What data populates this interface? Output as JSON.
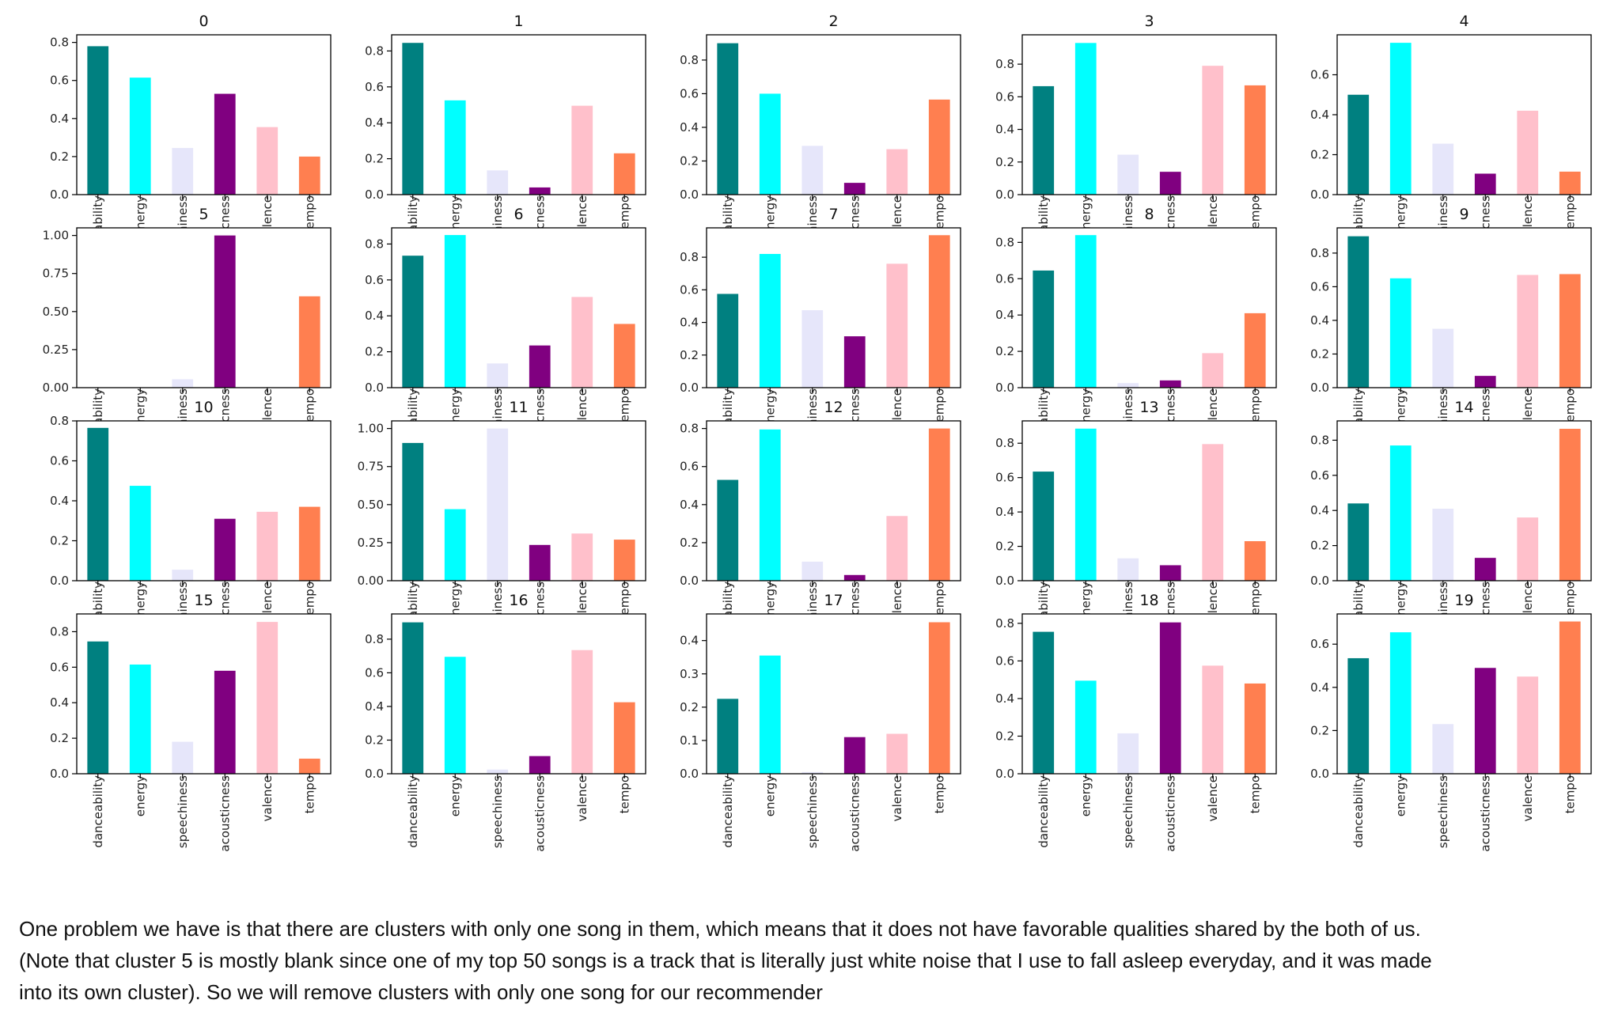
{
  "colors": [
    "#008080",
    "#00ffff",
    "#e6e6fa",
    "#800080",
    "#ffc0cb",
    "#ff7f50"
  ],
  "chart_data": [
    {
      "type": "bar",
      "title": "0",
      "categories": [
        "danceability",
        "energy",
        "speechiness",
        "acousticness",
        "valence",
        "tempo"
      ],
      "values": [
        0.78,
        0.615,
        0.245,
        0.53,
        0.355,
        0.2
      ],
      "ylim": [
        0,
        0.84
      ],
      "yticks": [
        "0.0",
        "0.2",
        "0.4",
        "0.6",
        "0.8"
      ]
    },
    {
      "type": "bar",
      "title": "1",
      "categories": [
        "danceability",
        "energy",
        "speechiness",
        "acousticness",
        "valence",
        "tempo"
      ],
      "values": [
        0.845,
        0.525,
        0.135,
        0.04,
        0.495,
        0.23
      ],
      "ylim": [
        0,
        0.89
      ],
      "yticks": [
        "0.0",
        "0.2",
        "0.4",
        "0.6",
        "0.8"
      ]
    },
    {
      "type": "bar",
      "title": "2",
      "categories": [
        "danceability",
        "energy",
        "speechiness",
        "acousticness",
        "valence",
        "tempo"
      ],
      "values": [
        0.9,
        0.6,
        0.29,
        0.07,
        0.27,
        0.565
      ],
      "ylim": [
        0,
        0.95
      ],
      "yticks": [
        "0.0",
        "0.2",
        "0.4",
        "0.6",
        "0.8"
      ]
    },
    {
      "type": "bar",
      "title": "3",
      "categories": [
        "danceability",
        "energy",
        "speechiness",
        "acousticness",
        "valence",
        "tempo"
      ],
      "values": [
        0.665,
        0.93,
        0.245,
        0.14,
        0.79,
        0.67
      ],
      "ylim": [
        0,
        0.98
      ],
      "yticks": [
        "0.0",
        "0.2",
        "0.4",
        "0.6",
        "0.8"
      ]
    },
    {
      "type": "bar",
      "title": "4",
      "categories": [
        "danceability",
        "energy",
        "speechiness",
        "acousticness",
        "valence",
        "tempo"
      ],
      "values": [
        0.5,
        0.76,
        0.255,
        0.105,
        0.42,
        0.115
      ],
      "ylim": [
        0,
        0.8
      ],
      "yticks": [
        "0.0",
        "0.2",
        "0.4",
        "0.6"
      ]
    },
    {
      "type": "bar",
      "title": "5",
      "categories": [
        "danceability",
        "energy",
        "speechiness",
        "acousticness",
        "valence",
        "tempo"
      ],
      "values": [
        0.0,
        0.0,
        0.055,
        1.0,
        0.0,
        0.6
      ],
      "ylim": [
        0,
        1.05
      ],
      "yticks": [
        "0.00",
        "0.25",
        "0.50",
        "0.75",
        "1.00"
      ]
    },
    {
      "type": "bar",
      "title": "6",
      "categories": [
        "danceability",
        "energy",
        "speechiness",
        "acousticness",
        "valence",
        "tempo"
      ],
      "values": [
        0.735,
        0.85,
        0.135,
        0.235,
        0.505,
        0.355
      ],
      "ylim": [
        0,
        0.89
      ],
      "yticks": [
        "0.0",
        "0.2",
        "0.4",
        "0.6",
        "0.8"
      ]
    },
    {
      "type": "bar",
      "title": "7",
      "categories": [
        "danceability",
        "energy",
        "speechiness",
        "acousticness",
        "valence",
        "tempo"
      ],
      "values": [
        0.575,
        0.82,
        0.475,
        0.315,
        0.76,
        0.935
      ],
      "ylim": [
        0,
        0.98
      ],
      "yticks": [
        "0.0",
        "0.2",
        "0.4",
        "0.6",
        "0.8"
      ]
    },
    {
      "type": "bar",
      "title": "8",
      "categories": [
        "danceability",
        "energy",
        "speechiness",
        "acousticness",
        "valence",
        "tempo"
      ],
      "values": [
        0.645,
        0.84,
        0.025,
        0.04,
        0.19,
        0.41
      ],
      "ylim": [
        0,
        0.88
      ],
      "yticks": [
        "0.0",
        "0.2",
        "0.4",
        "0.6",
        "0.8"
      ]
    },
    {
      "type": "bar",
      "title": "9",
      "categories": [
        "danceability",
        "energy",
        "speechiness",
        "acousticness",
        "valence",
        "tempo"
      ],
      "values": [
        0.9,
        0.65,
        0.35,
        0.07,
        0.67,
        0.675
      ],
      "ylim": [
        0,
        0.95
      ],
      "yticks": [
        "0.0",
        "0.2",
        "0.4",
        "0.6",
        "0.8"
      ]
    },
    {
      "type": "bar",
      "title": "10",
      "categories": [
        "danceability",
        "energy",
        "speechiness",
        "acousticness",
        "valence",
        "tempo"
      ],
      "values": [
        0.765,
        0.475,
        0.055,
        0.31,
        0.345,
        0.37
      ],
      "ylim": [
        0,
        0.8
      ],
      "yticks": [
        "0.0",
        "0.2",
        "0.4",
        "0.6",
        "0.8"
      ]
    },
    {
      "type": "bar",
      "title": "11",
      "categories": [
        "danceability",
        "energy",
        "speechiness",
        "acousticness",
        "valence",
        "tempo"
      ],
      "values": [
        0.905,
        0.47,
        1.0,
        0.235,
        0.31,
        0.27
      ],
      "ylim": [
        0,
        1.05
      ],
      "yticks": [
        "0.00",
        "0.25",
        "0.50",
        "0.75",
        "1.00"
      ]
    },
    {
      "type": "bar",
      "title": "12",
      "categories": [
        "danceability",
        "energy",
        "speechiness",
        "acousticness",
        "valence",
        "tempo"
      ],
      "values": [
        0.53,
        0.795,
        0.1,
        0.03,
        0.34,
        0.8
      ],
      "ylim": [
        0,
        0.84
      ],
      "yticks": [
        "0.0",
        "0.2",
        "0.4",
        "0.6",
        "0.8"
      ]
    },
    {
      "type": "bar",
      "title": "13",
      "categories": [
        "danceability",
        "energy",
        "speechiness",
        "acousticness",
        "valence",
        "tempo"
      ],
      "values": [
        0.635,
        0.885,
        0.13,
        0.09,
        0.795,
        0.23
      ],
      "ylim": [
        0,
        0.93
      ],
      "yticks": [
        "0.0",
        "0.2",
        "0.4",
        "0.6",
        "0.8"
      ]
    },
    {
      "type": "bar",
      "title": "14",
      "categories": [
        "danceability",
        "energy",
        "speechiness",
        "acousticness",
        "valence",
        "tempo"
      ],
      "values": [
        0.44,
        0.77,
        0.41,
        0.13,
        0.36,
        0.865
      ],
      "ylim": [
        0,
        0.91
      ],
      "yticks": [
        "0.0",
        "0.2",
        "0.4",
        "0.6",
        "0.8"
      ]
    },
    {
      "type": "bar",
      "title": "15",
      "categories": [
        "danceability",
        "energy",
        "speechiness",
        "acousticness",
        "valence",
        "tempo"
      ],
      "values": [
        0.745,
        0.615,
        0.18,
        0.58,
        0.855,
        0.085
      ],
      "ylim": [
        0,
        0.9
      ],
      "yticks": [
        "0.0",
        "0.2",
        "0.4",
        "0.6",
        "0.8"
      ]
    },
    {
      "type": "bar",
      "title": "16",
      "categories": [
        "danceability",
        "energy",
        "speechiness",
        "acousticness",
        "valence",
        "tempo"
      ],
      "values": [
        0.9,
        0.695,
        0.025,
        0.105,
        0.735,
        0.425
      ],
      "ylim": [
        0,
        0.95
      ],
      "yticks": [
        "0.0",
        "0.2",
        "0.4",
        "0.6",
        "0.8"
      ]
    },
    {
      "type": "bar",
      "title": "17",
      "categories": [
        "danceability",
        "energy",
        "speechiness",
        "acousticness",
        "valence",
        "tempo"
      ],
      "values": [
        0.225,
        0.355,
        0.005,
        0.11,
        0.12,
        0.455
      ],
      "ylim": [
        0,
        0.48
      ],
      "yticks": [
        "0.0",
        "0.1",
        "0.2",
        "0.3",
        "0.4"
      ]
    },
    {
      "type": "bar",
      "title": "18",
      "categories": [
        "danceability",
        "energy",
        "speechiness",
        "acousticness",
        "valence",
        "tempo"
      ],
      "values": [
        0.755,
        0.495,
        0.215,
        0.805,
        0.575,
        0.48
      ],
      "ylim": [
        0,
        0.85
      ],
      "yticks": [
        "0.0",
        "0.2",
        "0.4",
        "0.6",
        "0.8"
      ]
    },
    {
      "type": "bar",
      "title": "19",
      "categories": [
        "danceability",
        "energy",
        "speechiness",
        "acousticness",
        "valence",
        "tempo"
      ],
      "values": [
        0.535,
        0.655,
        0.23,
        0.49,
        0.45,
        0.705
      ],
      "ylim": [
        0,
        0.74
      ],
      "yticks": [
        "0.0",
        "0.2",
        "0.4",
        "0.6"
      ]
    }
  ],
  "paragraph": {
    "line1": "One problem we have is that there are clusters with only one song in them, which means that it does not have favorable qualities shared by the both of us.",
    "line2": "(Note that cluster 5 is mostly blank since one of my top 50 songs is a track that is literally just white noise that I use to fall asleep everyday, and it was made",
    "line3": "into its own cluster). So we will remove clusters with only one song for our recommender"
  }
}
